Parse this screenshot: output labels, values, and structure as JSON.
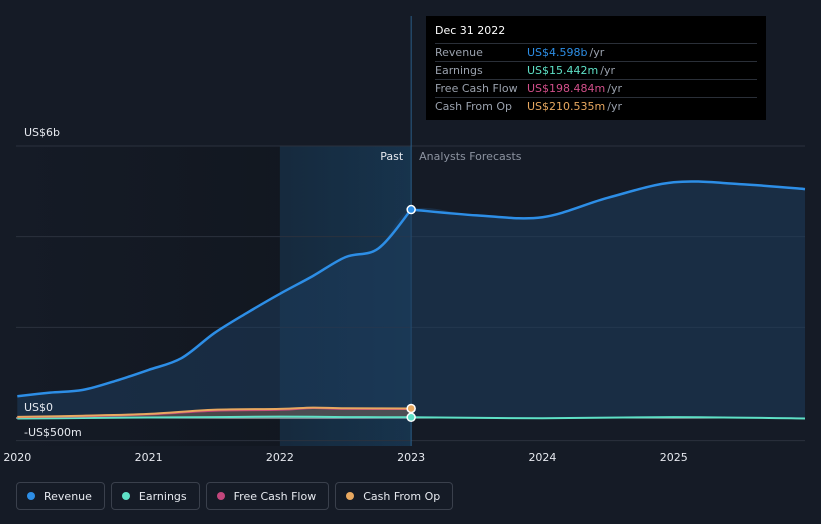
{
  "chart_data": {
    "type": "line",
    "title": "",
    "y_top_label": "US$6b",
    "y_zero_label": "US$0",
    "y_bottom_label": "-US$500m",
    "ylim": [
      -500,
      6000
    ],
    "x_ticks": [
      {
        "label": "2020",
        "x": 2020.0
      },
      {
        "label": "2021",
        "x": 2021.0
      },
      {
        "label": "2022",
        "x": 2022.0
      },
      {
        "label": "2023",
        "x": 2023.0
      },
      {
        "label": "2024",
        "x": 2024.0
      },
      {
        "label": "2025",
        "x": 2025.0
      }
    ],
    "xlim": [
      2019.99,
      2026.0
    ],
    "divider_x": 2023.0,
    "past_label": "Past",
    "forecast_label": "Analysts Forecasts",
    "series": [
      {
        "name": "Revenue",
        "color": "#2d8ee6",
        "values": [
          [
            2020.0,
            480
          ],
          [
            2020.25,
            560
          ],
          [
            2020.5,
            620
          ],
          [
            2020.75,
            820
          ],
          [
            2021.0,
            1060
          ],
          [
            2021.25,
            1320
          ],
          [
            2021.5,
            1870
          ],
          [
            2021.75,
            2320
          ],
          [
            2022.0,
            2740
          ],
          [
            2022.25,
            3130
          ],
          [
            2022.5,
            3550
          ],
          [
            2022.75,
            3740
          ],
          [
            2023.0,
            4598
          ]
        ]
      },
      {
        "name": "Revenue Forecast",
        "color": "#2d8ee6",
        "values": [
          [
            2023.0,
            4598
          ],
          [
            2023.5,
            4470
          ],
          [
            2024.0,
            4430
          ],
          [
            2024.5,
            4860
          ],
          [
            2025.0,
            5200
          ],
          [
            2025.5,
            5160
          ],
          [
            2026.0,
            5050
          ]
        ]
      },
      {
        "name": "Earnings",
        "color": "#5ee0c6",
        "values": [
          [
            2020.0,
            -10
          ],
          [
            2020.5,
            0
          ],
          [
            2021.0,
            10
          ],
          [
            2021.5,
            20
          ],
          [
            2022.0,
            30
          ],
          [
            2022.5,
            20
          ],
          [
            2023.0,
            15.442
          ],
          [
            2024.0,
            -5
          ],
          [
            2025.0,
            20
          ],
          [
            2026.0,
            -10
          ]
        ]
      },
      {
        "name": "Free Cash Flow",
        "color": "#c2467c",
        "values": [
          [
            2020.0,
            20
          ],
          [
            2020.5,
            40
          ],
          [
            2021.0,
            80
          ],
          [
            2021.5,
            160
          ],
          [
            2022.0,
            180
          ],
          [
            2022.25,
            220
          ],
          [
            2022.5,
            200
          ],
          [
            2023.0,
            198.484
          ]
        ]
      },
      {
        "name": "Cash From Op",
        "color": "#e8a860",
        "values": [
          [
            2020.0,
            25
          ],
          [
            2020.5,
            50
          ],
          [
            2021.0,
            90
          ],
          [
            2021.5,
            180
          ],
          [
            2022.0,
            200
          ],
          [
            2022.25,
            230
          ],
          [
            2022.5,
            215
          ],
          [
            2023.0,
            210.535
          ]
        ]
      }
    ]
  },
  "tooltip": {
    "date": "Dec 31 2022",
    "rows": [
      {
        "label": "Revenue",
        "value": "US$4.598b",
        "unit": "/yr",
        "color": "#2d8ee6"
      },
      {
        "label": "Earnings",
        "value": "US$15.442m",
        "unit": "/yr",
        "color": "#5ee0c6"
      },
      {
        "label": "Free Cash Flow",
        "value": "US$198.484m",
        "unit": "/yr",
        "color": "#d24f8a"
      },
      {
        "label": "Cash From Op",
        "value": "US$210.535m",
        "unit": "/yr",
        "color": "#e8a860"
      }
    ]
  },
  "legend": [
    {
      "label": "Revenue",
      "color": "#2d8ee6"
    },
    {
      "label": "Earnings",
      "color": "#5ee0c6"
    },
    {
      "label": "Free Cash Flow",
      "color": "#c2467c"
    },
    {
      "label": "Cash From Op",
      "color": "#e8a860"
    }
  ]
}
